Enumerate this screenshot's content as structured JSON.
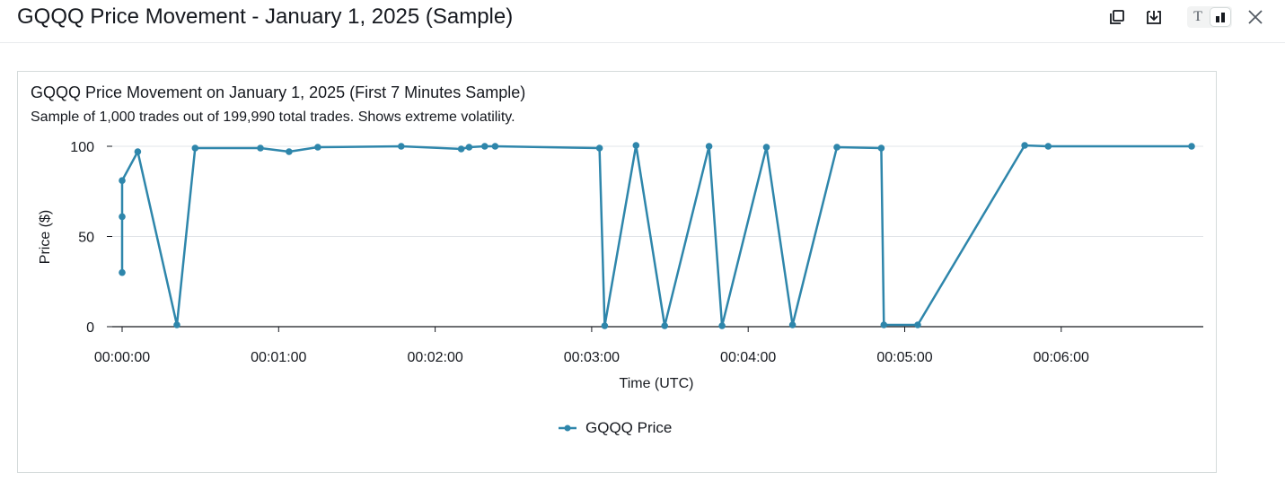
{
  "header": {
    "title": "GQQQ Price Movement - January 1, 2025 (Sample)"
  },
  "toolbar": {
    "icons": [
      "copy-icon",
      "download-icon",
      "text-view-icon",
      "chart-view-icon",
      "close-icon"
    ],
    "text_toggle_glyph": "T"
  },
  "colors": {
    "series": "#2e86ab",
    "grid": "#e1e4e8",
    "axis": "#16191f"
  },
  "chart_data": {
    "type": "line",
    "title": "GQQQ Price Movement on January 1, 2025 (First 7 Minutes Sample)",
    "subtitle": "Sample of 1,000 trades out of 199,990 total trades. Shows extreme volatility.",
    "xlabel": "Time (UTC)",
    "ylabel": "Price ($)",
    "xlim": [
      "00:00:00",
      "00:06:50"
    ],
    "ylim": [
      0,
      100
    ],
    "x_ticks": [
      "00:00:00",
      "00:01:00",
      "00:02:00",
      "00:03:00",
      "00:04:00",
      "00:05:00",
      "00:06:00"
    ],
    "y_ticks": [
      "0",
      "50",
      "100"
    ],
    "grid": "horizontal",
    "legend_position": "bottom-center",
    "series": [
      {
        "name": "GQQQ Price",
        "color": "#2e86ab",
        "points": [
          {
            "x": "00:00:00",
            "y": 30
          },
          {
            "x": "00:00:00",
            "y": 61
          },
          {
            "x": "00:00:00",
            "y": 81
          },
          {
            "x": "00:00:06",
            "y": 97
          },
          {
            "x": "00:00:21",
            "y": 1
          },
          {
            "x": "00:00:28",
            "y": 99
          },
          {
            "x": "00:00:53",
            "y": 99
          },
          {
            "x": "00:01:04",
            "y": 97
          },
          {
            "x": "00:01:15",
            "y": 99.5
          },
          {
            "x": "00:01:47",
            "y": 100
          },
          {
            "x": "00:02:10",
            "y": 98.5
          },
          {
            "x": "00:02:13",
            "y": 99.5
          },
          {
            "x": "00:02:19",
            "y": 100
          },
          {
            "x": "00:02:23",
            "y": 100
          },
          {
            "x": "00:03:03",
            "y": 99
          },
          {
            "x": "00:03:05",
            "y": 0.5
          },
          {
            "x": "00:03:17",
            "y": 100.5
          },
          {
            "x": "00:03:28",
            "y": 0.5
          },
          {
            "x": "00:03:45",
            "y": 100
          },
          {
            "x": "00:03:50",
            "y": 0.5
          },
          {
            "x": "00:04:07",
            "y": 99.5
          },
          {
            "x": "00:04:17",
            "y": 1
          },
          {
            "x": "00:04:34",
            "y": 99.5
          },
          {
            "x": "00:04:51",
            "y": 99
          },
          {
            "x": "00:04:52",
            "y": 1
          },
          {
            "x": "00:05:05",
            "y": 1
          },
          {
            "x": "00:05:46",
            "y": 100.5
          },
          {
            "x": "00:05:55",
            "y": 100
          },
          {
            "x": "00:06:50",
            "y": 100
          }
        ]
      }
    ]
  }
}
